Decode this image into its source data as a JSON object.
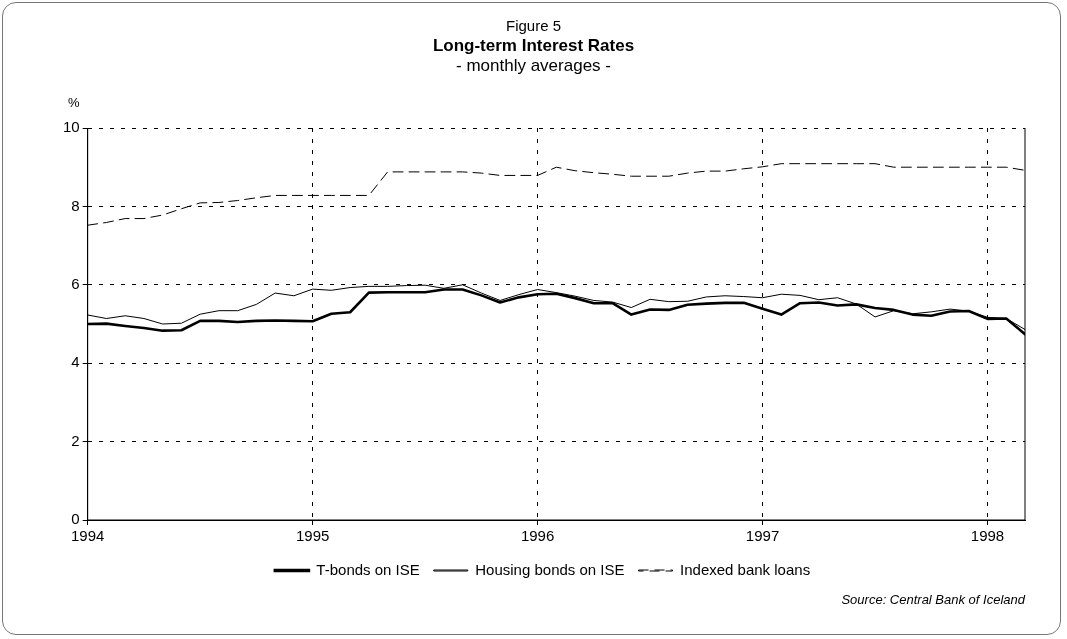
{
  "chart_data": {
    "type": "line",
    "title": "Long-term Interest Rates",
    "subtitle": "- monthly averages -",
    "ylabel": "%",
    "annotations": [
      "Figure 5",
      "Source: Central Bank of Iceland"
    ],
    "x": [
      "1994-01",
      "1994-02",
      "1994-03",
      "1994-04",
      "1994-05",
      "1994-06",
      "1994-07",
      "1994-08",
      "1994-09",
      "1994-10",
      "1994-11",
      "1994-12",
      "1995-01",
      "1995-02",
      "1995-03",
      "1995-04",
      "1995-05",
      "1995-06",
      "1995-07",
      "1995-08",
      "1995-09",
      "1995-10",
      "1995-11",
      "1995-12",
      "1996-01",
      "1996-02",
      "1996-03",
      "1996-04",
      "1996-05",
      "1996-06",
      "1996-07",
      "1996-08",
      "1996-09",
      "1996-10",
      "1996-11",
      "1996-12",
      "1997-01",
      "1997-02",
      "1997-03",
      "1997-04",
      "1997-05",
      "1997-06",
      "1997-07",
      "1997-08",
      "1997-09",
      "1997-10",
      "1997-11",
      "1997-12",
      "1998-01",
      "1998-02",
      "1998-03"
    ],
    "series": [
      {
        "name": "T-bonds on ISE",
        "color": "#000000",
        "values": [
          5.0,
          5.01,
          4.95,
          4.9,
          4.83,
          4.84,
          5.08,
          5.08,
          5.05,
          5.08,
          5.09,
          5.08,
          5.07,
          5.26,
          5.3,
          5.8,
          5.81,
          5.81,
          5.81,
          5.88,
          5.88,
          5.73,
          5.55,
          5.68,
          5.76,
          5.77,
          5.66,
          5.53,
          5.53,
          5.24,
          5.37,
          5.36,
          5.49,
          5.52,
          5.54,
          5.54,
          5.39,
          5.24,
          5.53,
          5.55,
          5.47,
          5.5,
          5.41,
          5.36,
          5.24,
          5.21,
          5.32,
          5.33,
          5.13,
          5.14,
          4.74
        ]
      },
      {
        "name": "Housing bonds on ISE",
        "color": "#000000",
        "values": [
          5.23,
          5.14,
          5.21,
          5.14,
          5.0,
          5.02,
          5.25,
          5.34,
          5.34,
          5.5,
          5.79,
          5.72,
          5.89,
          5.86,
          5.93,
          5.96,
          5.96,
          5.98,
          5.99,
          5.91,
          6.0,
          5.79,
          5.6,
          5.75,
          5.88,
          5.8,
          5.71,
          5.6,
          5.56,
          5.42,
          5.63,
          5.57,
          5.58,
          5.69,
          5.72,
          5.7,
          5.67,
          5.76,
          5.73,
          5.62,
          5.67,
          5.51,
          5.18,
          5.34,
          5.26,
          5.31,
          5.38,
          5.33,
          5.17,
          5.14,
          4.86
        ]
      },
      {
        "name": "Indexed bank loans",
        "color": "#000000",
        "line_style": "dashed",
        "values": [
          7.52,
          7.59,
          7.69,
          7.69,
          7.78,
          7.94,
          8.09,
          8.1,
          8.15,
          8.22,
          8.28,
          8.28,
          8.28,
          8.28,
          8.28,
          8.28,
          8.88,
          8.88,
          8.88,
          8.88,
          8.88,
          8.85,
          8.79,
          8.79,
          8.79,
          9.0,
          8.91,
          8.86,
          8.82,
          8.77,
          8.77,
          8.77,
          8.85,
          8.9,
          8.9,
          8.96,
          9.01,
          9.09,
          9.09,
          9.09,
          9.09,
          9.09,
          9.09,
          9.0,
          9.0,
          9.0,
          9.0,
          9.0,
          9.0,
          9.0,
          8.92
        ]
      }
    ],
    "xlim": [
      "1994-01",
      "1998-03"
    ],
    "xticks": [
      "1994",
      "1995",
      "1996",
      "1997",
      "1998"
    ],
    "ylim": [
      0,
      10
    ],
    "yticks": [
      0,
      2,
      4,
      6,
      8,
      10
    ],
    "grid": true,
    "legend": "bottom",
    "marker": "none",
    "line_style": "solid"
  }
}
